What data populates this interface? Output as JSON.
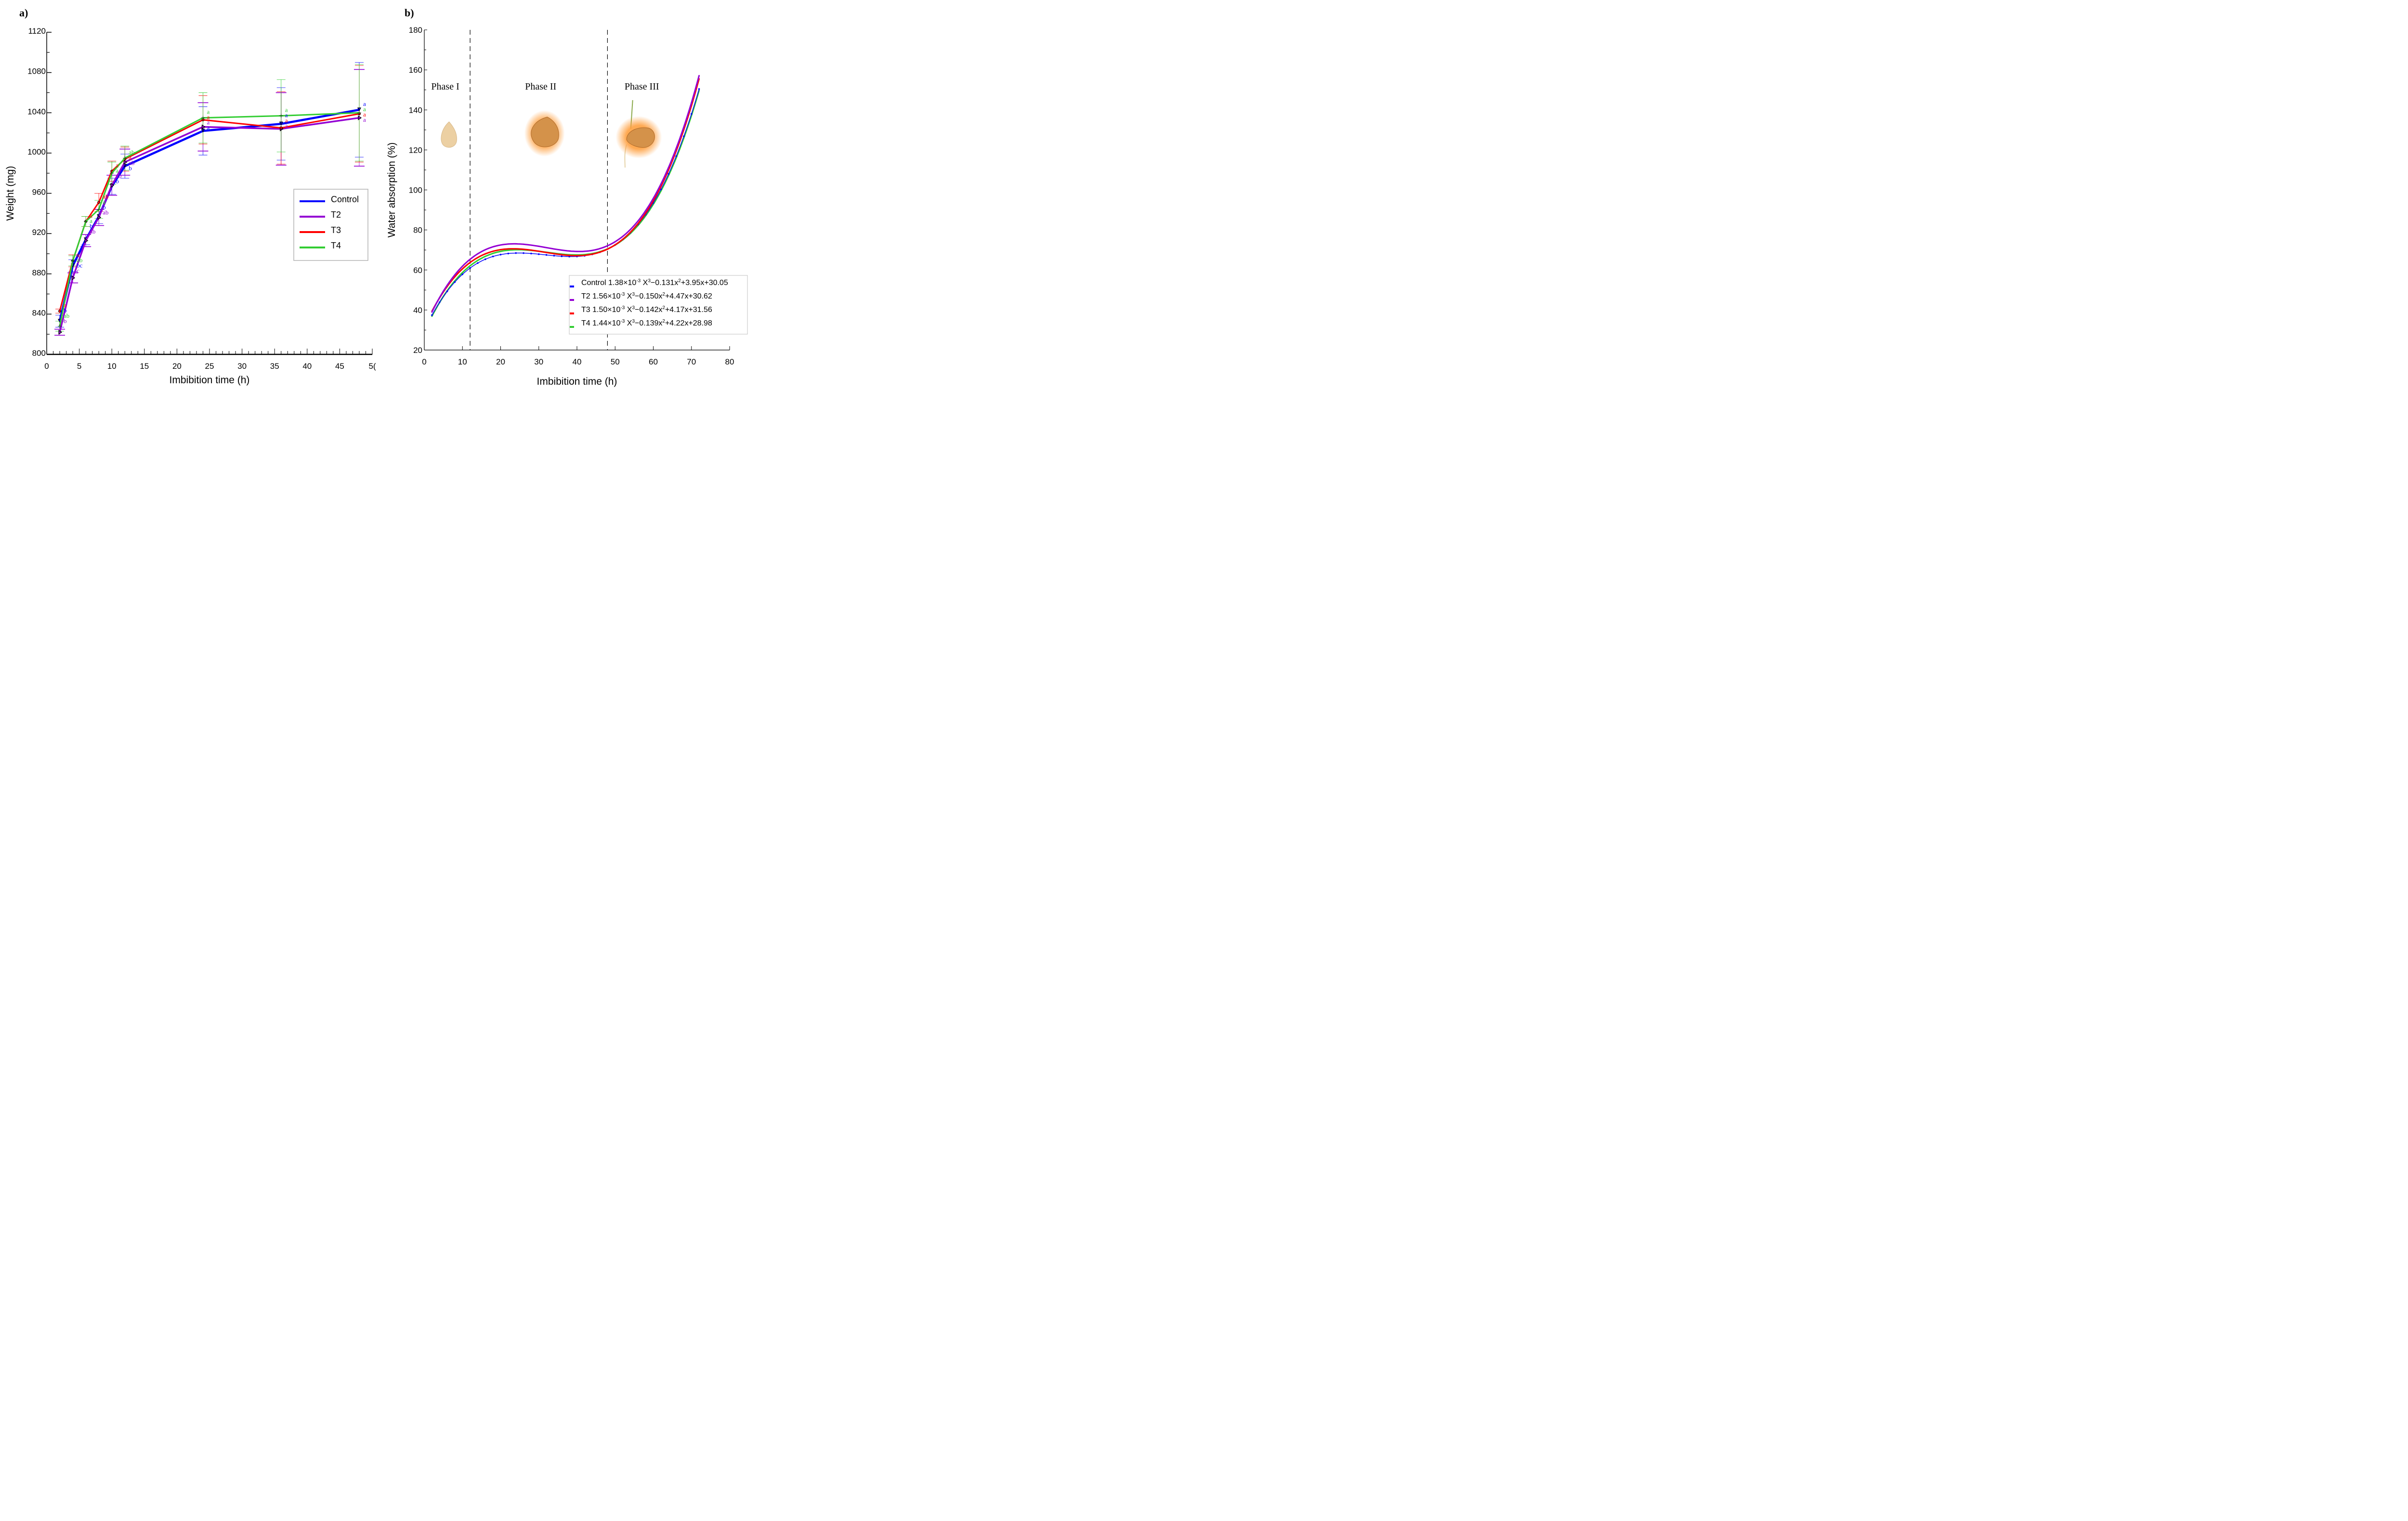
{
  "colors": {
    "Control": "#0000ff",
    "T2": "#9400d3",
    "T3": "#ff0000",
    "T4": "#32cd32"
  },
  "chart_data": [
    {
      "panel": "a)",
      "type": "line",
      "title": "",
      "xlabel": "Imbibition time (h)",
      "ylabel": "Weight (mg)",
      "xlim": [
        0,
        50
      ],
      "ylim": [
        800,
        1120
      ],
      "x_ticks": [
        0,
        5,
        10,
        15,
        20,
        25,
        30,
        35,
        40,
        45,
        50
      ],
      "x_tick_labels": [
        "0",
        "5",
        "10",
        "15",
        "20",
        "25",
        "30",
        "35",
        "40",
        "45",
        "5("
      ],
      "y_ticks": [
        800,
        840,
        880,
        920,
        960,
        1000,
        1040,
        1080,
        1120
      ],
      "grid": false,
      "legend": {
        "position": "center-right",
        "entries": [
          "Control",
          "T2",
          "T3",
          "T4"
        ]
      },
      "x": [
        2,
        4,
        6,
        8,
        10,
        12,
        24,
        36,
        48
      ],
      "series": [
        {
          "name": "Control",
          "marker": "triangle-down",
          "values": [
            833,
            888,
            914,
            937,
            967,
            987,
            1022,
            1029,
            1043
          ],
          "error": [
            6,
            6,
            5,
            7,
            8,
            12,
            24,
            36,
            47
          ],
          "letters": [
            "b",
            "bc",
            "b",
            "b",
            "b",
            "b",
            "a",
            "a",
            "a"
          ]
        },
        {
          "name": "T2",
          "marker": "triangle-right",
          "values": [
            822,
            876,
            913,
            936,
            968,
            991,
            1026,
            1024,
            1035
          ],
          "error": [
            3,
            5,
            6,
            8,
            10,
            13,
            24,
            36,
            48
          ],
          "letters": [
            "b",
            "c",
            "ab",
            "ab",
            "ab",
            "ab",
            "a",
            "a",
            "a"
          ]
        },
        {
          "name": "T3",
          "marker": "circle",
          "values": [
            843,
            893,
            932,
            951,
            982,
            994,
            1033,
            1025,
            1039
          ],
          "error": [
            2,
            6,
            5,
            9,
            10,
            12,
            24,
            36,
            48
          ],
          "letters": [
            "a",
            "a",
            "a",
            "ab",
            "a",
            "a",
            "a",
            "a",
            "a"
          ]
        },
        {
          "name": "T4",
          "marker": "plus",
          "values": [
            828,
            893,
            932,
            944,
            980,
            995,
            1035,
            1037,
            1040
          ],
          "error": [
            5,
            5,
            5,
            9,
            11,
            12,
            25,
            36,
            48
          ],
          "letters": [
            "ab",
            "ab",
            "a",
            "a",
            "a",
            "ab",
            "a",
            "a",
            "a"
          ]
        }
      ]
    },
    {
      "panel": "b)",
      "type": "line",
      "title": "",
      "xlabel": "Imbibition time (h)",
      "ylabel": "Water absorption (%)",
      "xlim": [
        0,
        80
      ],
      "ylim": [
        20,
        180
      ],
      "x_ticks": [
        0,
        10,
        20,
        30,
        40,
        50,
        60,
        70,
        80
      ],
      "y_ticks": [
        20,
        40,
        60,
        80,
        100,
        120,
        140,
        160,
        180
      ],
      "grid": false,
      "x_range_fit": [
        2,
        72
      ],
      "phase_boundaries": [
        12,
        48
      ],
      "phases": [
        "Phase I",
        "Phase II",
        "Phase III"
      ],
      "legend": {
        "position": "bottom-right"
      },
      "series": [
        {
          "name": "Control",
          "coefficients": [
            0.00138,
            -0.131,
            3.95,
            30.05
          ],
          "label_parts": [
            "Control 1.38×10",
            "-3",
            " X",
            "3",
            "−0.131x",
            "2",
            "+3.95x+30.05"
          ]
        },
        {
          "name": "T2",
          "coefficients": [
            0.00156,
            -0.15,
            4.47,
            30.62
          ],
          "label_parts": [
            "T2 1.56×10",
            "-3",
            " X",
            "3",
            "−0.150x",
            "2",
            "+4.47x+30.62"
          ]
        },
        {
          "name": "T3",
          "coefficients": [
            0.0015,
            -0.142,
            4.17,
            31.56
          ],
          "label_parts": [
            "T3 1.50×10",
            "-3",
            " X",
            "3",
            "−0.142x",
            "2",
            "+4.17x+31.56"
          ]
        },
        {
          "name": "T4",
          "coefficients": [
            0.00144,
            -0.139,
            4.22,
            28.98
          ],
          "label_parts": [
            "T4 1.44×10",
            "-3",
            " X",
            "3",
            "−0.139x",
            "2",
            "+4.22x+28.98"
          ]
        }
      ]
    }
  ],
  "panels": {
    "a": "a)",
    "b": "b)"
  }
}
